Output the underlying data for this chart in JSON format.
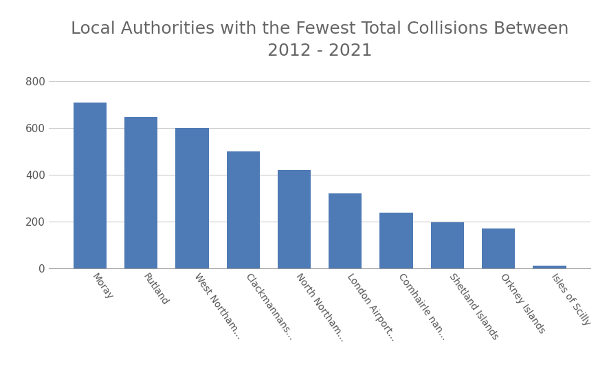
{
  "title": "Local Authorities with the Fewest Total Collisions Between\n2012 - 2021",
  "categories": [
    "Moray",
    "Rutland",
    "West Northam...",
    "Clackmannans...",
    "North Northam...",
    "London Airport...",
    "Comhairle nan...",
    "Shetland Islands",
    "Orkney Islands",
    "Isles of Scilly"
  ],
  "values": [
    710,
    648,
    601,
    500,
    420,
    320,
    240,
    198,
    170,
    13
  ],
  "bar_color": "#4e7ab5",
  "ylim": [
    0,
    860
  ],
  "yticks": [
    0,
    200,
    400,
    600,
    800
  ],
  "title_fontsize": 18,
  "tick_fontsize": 11,
  "xtick_fontsize": 10,
  "background_color": "#ffffff",
  "grid_color": "#cccccc",
  "title_color": "#666666",
  "tick_color": "#555555",
  "spine_color": "#999999"
}
